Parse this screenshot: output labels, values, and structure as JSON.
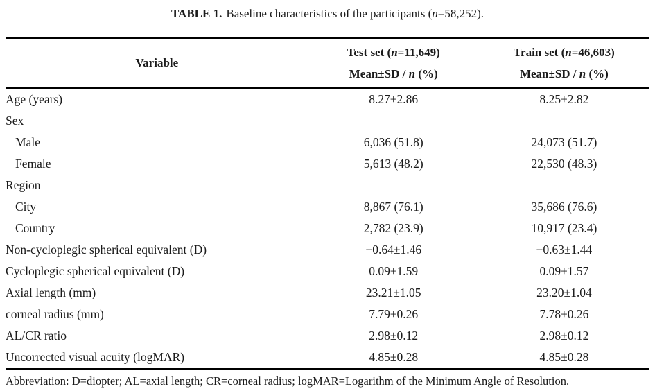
{
  "title": {
    "label": "TABLE 1.",
    "pre": "Baseline characteristics of the participants (",
    "n": "n",
    "post": "=58,252)."
  },
  "table": {
    "header": {
      "variable": "Variable",
      "test": {
        "pre": "Test set (",
        "n": "n",
        "post": "=11,649)"
      },
      "train": {
        "pre": "Train set (",
        "n": "n",
        "post": "=46,603)"
      },
      "measure": {
        "pre": "Mean±SD / ",
        "n": "n",
        "post": " (%)"
      }
    },
    "rows": [
      {
        "label": "Age (years)",
        "test": "8.27±2.86",
        "train": "8.25±2.82"
      },
      {
        "label": "Sex",
        "test": "",
        "train": ""
      },
      {
        "label": "Male",
        "test": "6,036 (51.8)",
        "train": "24,073 (51.7)"
      },
      {
        "label": "Female",
        "test": "5,613 (48.2)",
        "train": "22,530 (48.3)"
      },
      {
        "label": "Region",
        "test": "",
        "train": ""
      },
      {
        "label": "City",
        "test": "8,867 (76.1)",
        "train": "35,686 (76.6)"
      },
      {
        "label": "Country",
        "test": "2,782 (23.9)",
        "train": "10,917 (23.4)"
      },
      {
        "label": "Non-cycloplegic spherical equivalent (D)",
        "test": "−0.64±1.46",
        "train": "−0.63±1.44"
      },
      {
        "label": "Cycloplegic spherical equivalent (D)",
        "test": "0.09±1.59",
        "train": "0.09±1.57"
      },
      {
        "label": "Axial length (mm)",
        "test": "23.21±1.05",
        "train": "23.20±1.04"
      },
      {
        "label": "corneal radius (mm)",
        "test": "7.79±0.26",
        "train": "7.78±0.26"
      },
      {
        "label": "AL/CR ratio",
        "test": "2.98±0.12",
        "train": "2.98±0.12"
      },
      {
        "label": "Uncorrected visual acuity (logMAR)",
        "test": "4.85±0.28",
        "train": "4.85±0.28"
      }
    ]
  },
  "footnote": "Abbreviation: D=diopter; AL=axial length; CR=corneal radius; logMAR=Logarithm of the Minimum Angle of Resolution."
}
